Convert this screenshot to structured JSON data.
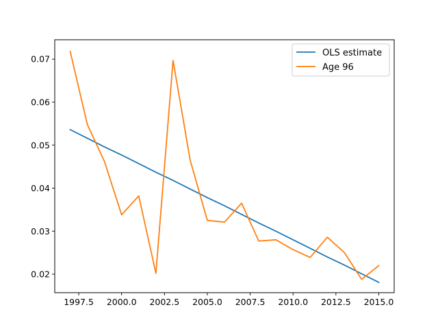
{
  "chart_data": {
    "type": "line",
    "title": "",
    "xlabel": "",
    "ylabel": "",
    "xlim": [
      1996.1,
      2015.9
    ],
    "ylim": [
      0.0157,
      0.0745
    ],
    "xticks": [
      1997.5,
      2000.0,
      2002.5,
      2005.0,
      2007.5,
      2010.0,
      2012.5,
      2015.0
    ],
    "xtick_labels": [
      "1997.5",
      "2000.0",
      "2002.5",
      "2005.0",
      "2007.5",
      "2010.0",
      "2012.5",
      "2015.0"
    ],
    "yticks": [
      0.02,
      0.03,
      0.04,
      0.05,
      0.06,
      0.07
    ],
    "ytick_labels": [
      "0.02",
      "0.03",
      "0.04",
      "0.05",
      "0.06",
      "0.07"
    ],
    "grid": false,
    "legend": {
      "position": "upper right"
    },
    "x": [
      1997,
      1998,
      1999,
      2000,
      2001,
      2002,
      2003,
      2004,
      2005,
      2006,
      2007,
      2008,
      2009,
      2010,
      2011,
      2012,
      2013,
      2014,
      2015
    ],
    "series": [
      {
        "name": "OLS estimate",
        "color": "#1f77b4",
        "values": [
          0.0536,
          0.0516,
          0.0496,
          0.0477,
          0.0457,
          0.0437,
          0.0418,
          0.0398,
          0.0378,
          0.0359,
          0.0339,
          0.0319,
          0.03,
          0.028,
          0.026,
          0.024,
          0.0221,
          0.0201,
          0.0181
        ]
      },
      {
        "name": "Age 96",
        "color": "#ff7f0e",
        "values": [
          0.0718,
          0.0548,
          0.0462,
          0.0338,
          0.0382,
          0.0202,
          0.0697,
          0.0465,
          0.0325,
          0.0321,
          0.0365,
          0.0277,
          0.028,
          0.0257,
          0.0239,
          0.0286,
          0.025,
          0.0188,
          0.022
        ]
      }
    ]
  }
}
